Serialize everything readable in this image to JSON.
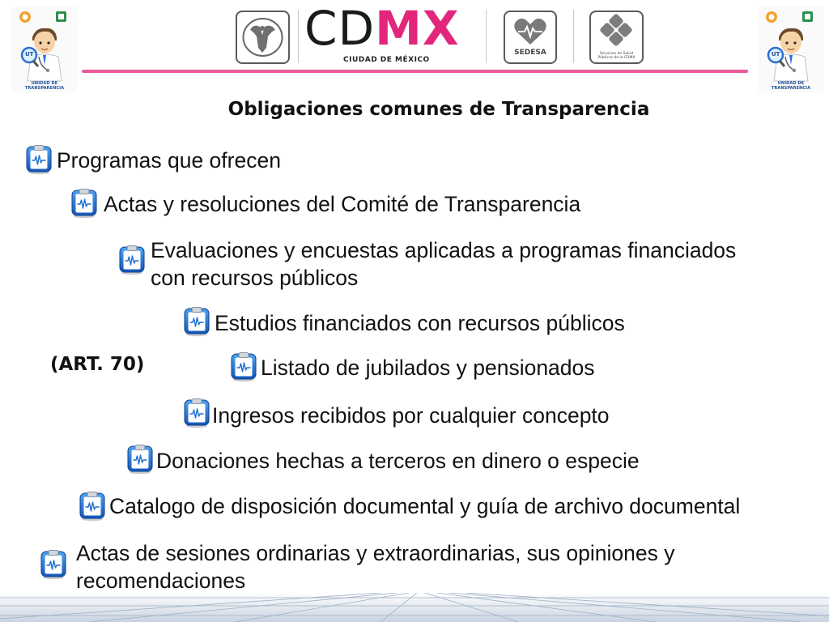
{
  "header": {
    "cdmx_cd": "CD",
    "cdmx_mx": "MX",
    "cdmx_subtitle": "CIUDAD DE MÉXICO",
    "sedesa_label": "SEDESA",
    "sersalud_label_1": "Servicios de Salud",
    "sersalud_label_2": "Públicos de la CDMX",
    "mascot_left_caption": "UNIDAD DE TRANSPARENCIA",
    "mascot_right_caption": "UNIDAD DE TRANSPARENCIA",
    "mascot_badge": "UT"
  },
  "title": "Obligaciones comunes de  Transparencia",
  "art_label": "(ART. 70)",
  "items": [
    {
      "text": "Programas que ofrecen"
    },
    {
      "text": "Actas y resoluciones del Comité de Transparencia"
    },
    {
      "text_line1": "Evaluaciones y encuestas aplicadas a programas financiados",
      "text_line2": "con recursos públicos"
    },
    {
      "text": "Estudios financiados con recursos públicos"
    },
    {
      "text": "Listado de jubilados y pensionados"
    },
    {
      "text": "Ingresos recibidos por cualquier concepto"
    },
    {
      "text": "Donaciones hechas a terceros en dinero o especie"
    },
    {
      "text": "Catalogo de disposición documental y guía de archivo documental"
    },
    {
      "text_line1": "Actas de sesiones ordinarias y extraordinarias, sus opiniones y",
      "text_line2": "recomendaciones"
    }
  ],
  "colors": {
    "accent_pink": "#e2267c",
    "icon_blue": "#1e6fd0"
  },
  "icons": {
    "bullet": "clipboard-icon",
    "mascot": "doctor-mascot-icon"
  }
}
